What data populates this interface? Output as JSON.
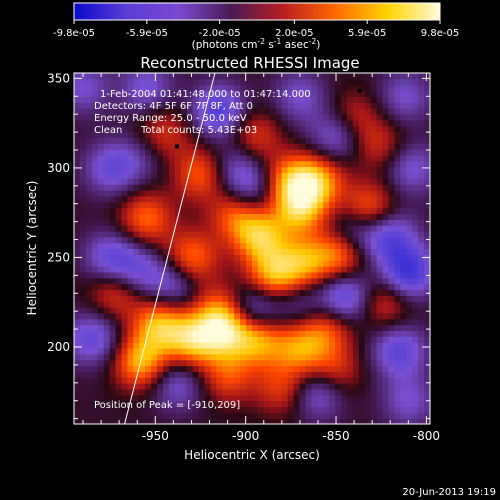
{
  "chart_data": {
    "type": "heatmap",
    "title": "Reconstructed RHESSI Image",
    "xlabel": "Heliocentric X (arcsec)",
    "ylabel": "Heliocentric Y (arcsec)",
    "xlim": [
      -995,
      -798
    ],
    "ylim": [
      157,
      353
    ],
    "x_ticks": [
      -950,
      -900,
      -850,
      -800
    ],
    "x_tick_labels": [
      "-950",
      "-900",
      "-850",
      "-800"
    ],
    "y_ticks": [
      200,
      250,
      300,
      350
    ],
    "y_tick_labels": [
      "200",
      "250",
      "300",
      "350"
    ],
    "colorbar": {
      "min": -9.8e-05,
      "max": 9.8e-05,
      "tick_labels": [
        "-9.8e-05",
        "-5.9e-05",
        "-2.0e-05",
        "2.0e-05",
        "5.9e-05",
        "9.8e-05"
      ],
      "unit_main": "(photons cm",
      "unit_sup1": "-2",
      "unit_mid1": " s",
      "unit_sup2": "-1",
      "unit_mid2": " asec",
      "unit_sup3": "-2",
      "unit_end": ")",
      "colors": [
        "#0a0acc",
        "#5b3bd6",
        "#7a4ad0",
        "#4a1a55",
        "#b81e22",
        "#ff6a00",
        "#ffd400",
        "#fffbd8"
      ]
    },
    "annotations": {
      "line1": "1-Feb-2004 01:41:48.000 to 01:47:14.000",
      "line2": "Detectors: 4F 5F 6F 7F 8F, Att 0",
      "line3": "Energy Range: 25.0 - 50.0 keV",
      "line4_a": "Clean",
      "line4_b": "Total counts: 5.43E+03",
      "peak": "Position of Peak = [-910,209]"
    },
    "peak_position": [
      -910,
      209
    ],
    "limb_line": [
      [
        -967,
        157
      ],
      [
        -917,
        353
      ]
    ],
    "sources": [
      {
        "x": -958,
        "y": 192,
        "amp": 1.0
      },
      {
        "x": -948,
        "y": 213,
        "amp": 0.95
      },
      {
        "x": -930,
        "y": 204,
        "amp": 1.0
      },
      {
        "x": -912,
        "y": 209,
        "amp": 1.05
      },
      {
        "x": -893,
        "y": 204,
        "amp": 0.9
      },
      {
        "x": -870,
        "y": 199,
        "amp": 0.8
      },
      {
        "x": -855,
        "y": 211,
        "amp": 0.65
      },
      {
        "x": -915,
        "y": 222,
        "amp": 0.55
      },
      {
        "x": -885,
        "y": 240,
        "amp": 0.95
      },
      {
        "x": -868,
        "y": 247,
        "amp": 0.85
      },
      {
        "x": -848,
        "y": 252,
        "amp": 0.85
      },
      {
        "x": -892,
        "y": 262,
        "amp": 1.0
      },
      {
        "x": -870,
        "y": 277,
        "amp": 0.95
      },
      {
        "x": -875,
        "y": 293,
        "amp": 0.85
      },
      {
        "x": -860,
        "y": 293,
        "amp": 0.9
      },
      {
        "x": -832,
        "y": 277,
        "amp": 0.8
      },
      {
        "x": -905,
        "y": 275,
        "amp": 0.75
      },
      {
        "x": -925,
        "y": 297,
        "amp": 0.7
      },
      {
        "x": -930,
        "y": 250,
        "amp": 0.8
      },
      {
        "x": -955,
        "y": 272,
        "amp": 0.75
      },
      {
        "x": -972,
        "y": 231,
        "amp": 0.6
      },
      {
        "x": -823,
        "y": 225,
        "amp": 0.55
      },
      {
        "x": -851,
        "y": 187,
        "amp": 0.55
      },
      {
        "x": -826,
        "y": 313,
        "amp": 0.45
      },
      {
        "x": -840,
        "y": 329,
        "amp": 0.45
      },
      {
        "x": -945,
        "y": 320,
        "amp": 0.5
      },
      {
        "x": -895,
        "y": 318,
        "amp": 0.55
      },
      {
        "x": -910,
        "y": 184,
        "amp": 0.6
      },
      {
        "x": -880,
        "y": 177,
        "amp": 0.55
      },
      {
        "x": -975,
        "y": 250,
        "amp": -0.65
      },
      {
        "x": -985,
        "y": 205,
        "amp": -0.7
      },
      {
        "x": -960,
        "y": 243,
        "amp": -0.55
      },
      {
        "x": -940,
        "y": 235,
        "amp": -0.6
      },
      {
        "x": -895,
        "y": 222,
        "amp": -0.7
      },
      {
        "x": -845,
        "y": 228,
        "amp": -0.85
      },
      {
        "x": -810,
        "y": 242,
        "amp": -1.0
      },
      {
        "x": -820,
        "y": 262,
        "amp": -0.75
      },
      {
        "x": -840,
        "y": 265,
        "amp": -0.6
      },
      {
        "x": -815,
        "y": 198,
        "amp": -0.75
      },
      {
        "x": -860,
        "y": 175,
        "amp": -0.65
      },
      {
        "x": -938,
        "y": 180,
        "amp": -0.55
      },
      {
        "x": -897,
        "y": 286,
        "amp": -0.55
      },
      {
        "x": -905,
        "y": 300,
        "amp": -0.5
      },
      {
        "x": -915,
        "y": 332,
        "amp": -0.85
      },
      {
        "x": -955,
        "y": 345,
        "amp": -0.55
      },
      {
        "x": -975,
        "y": 300,
        "amp": -0.6
      },
      {
        "x": -850,
        "y": 318,
        "amp": -0.6
      },
      {
        "x": -808,
        "y": 300,
        "amp": -0.55
      },
      {
        "x": -870,
        "y": 340,
        "amp": -0.5
      },
      {
        "x": -812,
        "y": 340,
        "amp": -0.5
      },
      {
        "x": -990,
        "y": 345,
        "amp": -0.5
      },
      {
        "x": -960,
        "y": 305,
        "amp": -0.3
      },
      {
        "x": -870,
        "y": 225,
        "amp": -0.4
      },
      {
        "x": -810,
        "y": 170,
        "amp": -0.5
      }
    ],
    "marker_points": [
      [
        -938,
        312
      ],
      [
        -837,
        343
      ]
    ]
  },
  "footer": {
    "timestamp": "20-Jun-2013 19:19"
  }
}
